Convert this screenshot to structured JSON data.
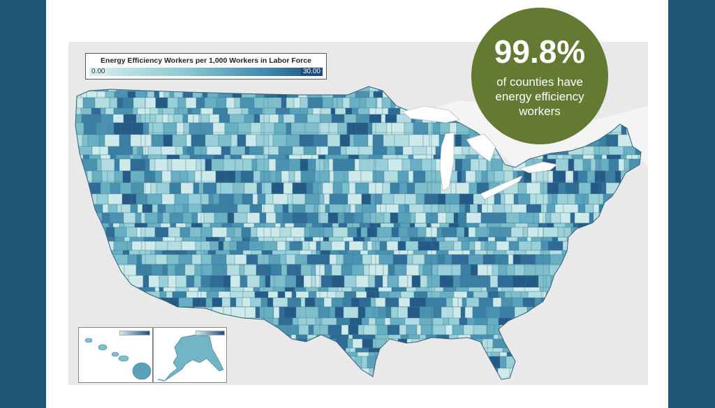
{
  "legend": {
    "title": "Energy Efficiency Workers per 1,000 Workers in Labor Force",
    "min": "0.00",
    "max": "30.00",
    "scale": [
      0,
      30
    ],
    "color_low": "#d6eeee",
    "color_high": "#1e4e7e"
  },
  "callout": {
    "value": "99.8%",
    "text": "of counties have energy efficiency workers",
    "color": "#647a33"
  },
  "map": {
    "region": "Contiguous United States by county",
    "insets": [
      "Hawaii",
      "Alaska"
    ],
    "water_color": "#ffffff",
    "land_outside_color": "#e9e9e9"
  },
  "colors": {
    "frame": "#1f5577",
    "panel": "#ffffff"
  }
}
